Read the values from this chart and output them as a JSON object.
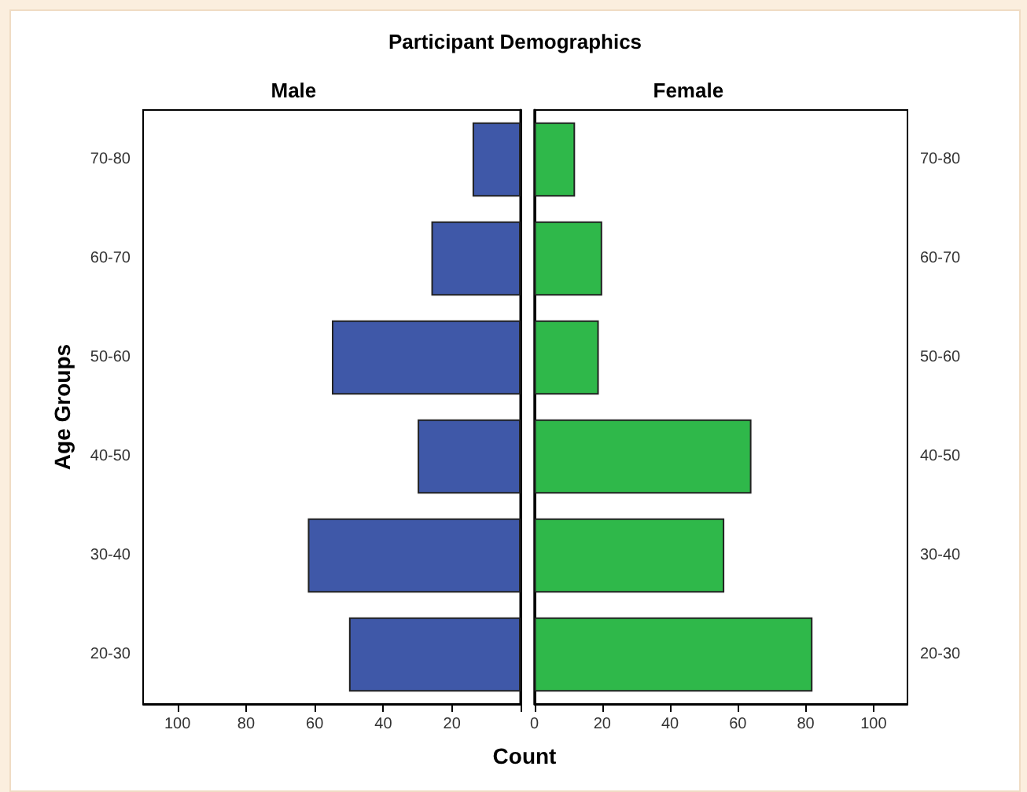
{
  "chart_data": [
    {
      "type": "bar",
      "orientation": "horizontal",
      "title": "Participant Demographics",
      "ylabel": "Age Groups",
      "categories": [
        "70-80",
        "60-70",
        "50-60",
        "40-50",
        "30-40",
        "20-30"
      ],
      "series": [
        {
          "name": "Male",
          "color": "#3f58a8",
          "values": [
            14,
            26,
            55,
            30,
            62,
            50
          ]
        }
      ],
      "xlim": [
        110,
        0
      ],
      "xticks": [
        100,
        80,
        60,
        40,
        20,
        {
          "value": 0,
          "label": null
        }
      ],
      "grid": false
    },
    {
      "type": "bar",
      "orientation": "horizontal",
      "xlabel": "Count",
      "categories": [
        "70-80",
        "60-70",
        "50-60",
        "40-50",
        "30-40",
        "20-30"
      ],
      "series": [
        {
          "name": "Female",
          "color": "#2fb84a",
          "values": [
            12,
            20,
            19,
            64,
            56,
            82
          ]
        }
      ],
      "xlim": [
        0,
        110
      ],
      "xticks": [
        0,
        20,
        40,
        60,
        80,
        100
      ],
      "grid": false
    }
  ]
}
